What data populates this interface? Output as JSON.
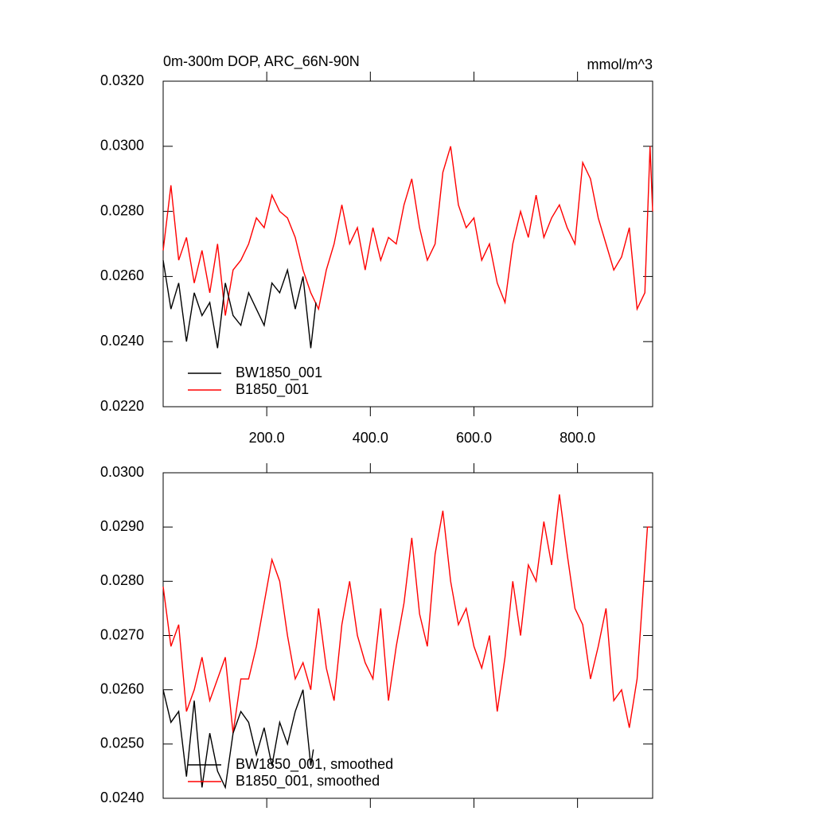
{
  "chart_data": [
    {
      "type": "line",
      "title": "0m-300m DOP, ARC_66N-90N",
      "units": "mmol/m^3",
      "xlim": [
        0,
        945
      ],
      "ylim": [
        0.022,
        0.032
      ],
      "xticks": [
        {
          "value": 200,
          "label": "200.0"
        },
        {
          "value": 400,
          "label": "400.0"
        },
        {
          "value": 600,
          "label": "600.0"
        },
        {
          "value": 800,
          "label": "800.0"
        }
      ],
      "yticks": [
        {
          "value": 0.022,
          "label": "0.0220"
        },
        {
          "value": 0.024,
          "label": "0.0240"
        },
        {
          "value": 0.026,
          "label": "0.0260"
        },
        {
          "value": 0.028,
          "label": "0.0280"
        },
        {
          "value": 0.03,
          "label": "0.0300"
        },
        {
          "value": 0.032,
          "label": "0.0320"
        }
      ],
      "series": [
        {
          "name": "BW1850_001",
          "color": "#000000",
          "x": [
            0,
            15,
            30,
            45,
            60,
            75,
            90,
            105,
            120,
            135,
            150,
            165,
            180,
            195,
            210,
            225,
            240,
            255,
            270,
            285,
            295
          ],
          "values": [
            0.0265,
            0.025,
            0.0258,
            0.024,
            0.0255,
            0.0248,
            0.0252,
            0.0238,
            0.0258,
            0.0248,
            0.0245,
            0.0255,
            0.025,
            0.0245,
            0.0258,
            0.0255,
            0.0262,
            0.025,
            0.026,
            0.0238,
            0.0252
          ]
        },
        {
          "name": "B1850_001",
          "color": "#ff0000",
          "x": [
            0,
            15,
            30,
            45,
            60,
            75,
            90,
            105,
            120,
            135,
            150,
            165,
            180,
            195,
            210,
            225,
            240,
            255,
            270,
            285,
            300,
            315,
            330,
            345,
            360,
            375,
            390,
            405,
            420,
            435,
            450,
            465,
            480,
            495,
            510,
            525,
            540,
            555,
            570,
            585,
            600,
            615,
            630,
            645,
            660,
            675,
            690,
            705,
            720,
            735,
            750,
            765,
            780,
            795,
            810,
            825,
            840,
            855,
            870,
            885,
            900,
            915,
            930,
            940,
            945
          ],
          "values": [
            0.0268,
            0.0288,
            0.0265,
            0.0272,
            0.0258,
            0.0268,
            0.0255,
            0.027,
            0.0248,
            0.0262,
            0.0265,
            0.027,
            0.0278,
            0.0275,
            0.0285,
            0.028,
            0.0278,
            0.0272,
            0.0262,
            0.0255,
            0.025,
            0.0262,
            0.027,
            0.0282,
            0.027,
            0.0275,
            0.0262,
            0.0275,
            0.0265,
            0.0272,
            0.027,
            0.0282,
            0.029,
            0.0275,
            0.0265,
            0.027,
            0.0292,
            0.03,
            0.0282,
            0.0275,
            0.0278,
            0.0265,
            0.027,
            0.0258,
            0.0252,
            0.027,
            0.028,
            0.0272,
            0.0285,
            0.0272,
            0.0278,
            0.0282,
            0.0275,
            0.027,
            0.0295,
            0.029,
            0.0278,
            0.027,
            0.0262,
            0.0266,
            0.0275,
            0.025,
            0.0255,
            0.03,
            0.028
          ]
        }
      ]
    },
    {
      "type": "line",
      "xlim": [
        0,
        945
      ],
      "ylim": [
        0.024,
        0.03
      ],
      "xticks": [
        200,
        400,
        600,
        800
      ],
      "yticks": [
        {
          "value": 0.024,
          "label": "0.0240"
        },
        {
          "value": 0.025,
          "label": "0.0250"
        },
        {
          "value": 0.026,
          "label": "0.0260"
        },
        {
          "value": 0.027,
          "label": "0.0270"
        },
        {
          "value": 0.028,
          "label": "0.0280"
        },
        {
          "value": 0.029,
          "label": "0.0290"
        },
        {
          "value": 0.03,
          "label": "0.0300"
        }
      ],
      "series": [
        {
          "name": "BW1850_001, smoothed",
          "color": "#000000",
          "x": [
            0,
            15,
            30,
            45,
            60,
            75,
            90,
            105,
            120,
            135,
            150,
            165,
            180,
            195,
            210,
            225,
            240,
            255,
            270,
            285,
            290
          ],
          "values": [
            0.026,
            0.0254,
            0.0256,
            0.0244,
            0.0258,
            0.0242,
            0.0252,
            0.0245,
            0.0242,
            0.0252,
            0.0256,
            0.0254,
            0.0248,
            0.0253,
            0.0246,
            0.0254,
            0.025,
            0.0256,
            0.026,
            0.0246,
            0.0249
          ]
        },
        {
          "name": "B1850_001, smoothed",
          "color": "#ff0000",
          "x": [
            0,
            15,
            30,
            45,
            60,
            75,
            90,
            105,
            120,
            135,
            150,
            165,
            180,
            195,
            210,
            225,
            240,
            255,
            270,
            285,
            300,
            315,
            330,
            345,
            360,
            375,
            390,
            405,
            420,
            435,
            450,
            465,
            480,
            495,
            510,
            525,
            540,
            555,
            570,
            585,
            600,
            615,
            630,
            645,
            660,
            675,
            690,
            705,
            720,
            735,
            750,
            765,
            780,
            795,
            810,
            825,
            840,
            855,
            870,
            885,
            900,
            915,
            935,
            940
          ],
          "values": [
            0.0279,
            0.0268,
            0.0272,
            0.0256,
            0.026,
            0.0266,
            0.0258,
            0.0262,
            0.0266,
            0.0252,
            0.0262,
            0.0262,
            0.0268,
            0.0276,
            0.0284,
            0.028,
            0.027,
            0.0262,
            0.0265,
            0.026,
            0.0275,
            0.0264,
            0.0258,
            0.0272,
            0.028,
            0.027,
            0.0265,
            0.0262,
            0.0275,
            0.0258,
            0.0268,
            0.0276,
            0.0288,
            0.0274,
            0.0268,
            0.0285,
            0.0293,
            0.028,
            0.0272,
            0.0275,
            0.0268,
            0.0264,
            0.027,
            0.0256,
            0.0266,
            0.028,
            0.027,
            0.0283,
            0.028,
            0.0291,
            0.0283,
            0.0296,
            0.0285,
            0.0275,
            0.0272,
            0.0262,
            0.0268,
            0.0275,
            0.0258,
            0.026,
            0.0253,
            0.0262,
            0.029,
            0.029
          ]
        }
      ]
    }
  ]
}
